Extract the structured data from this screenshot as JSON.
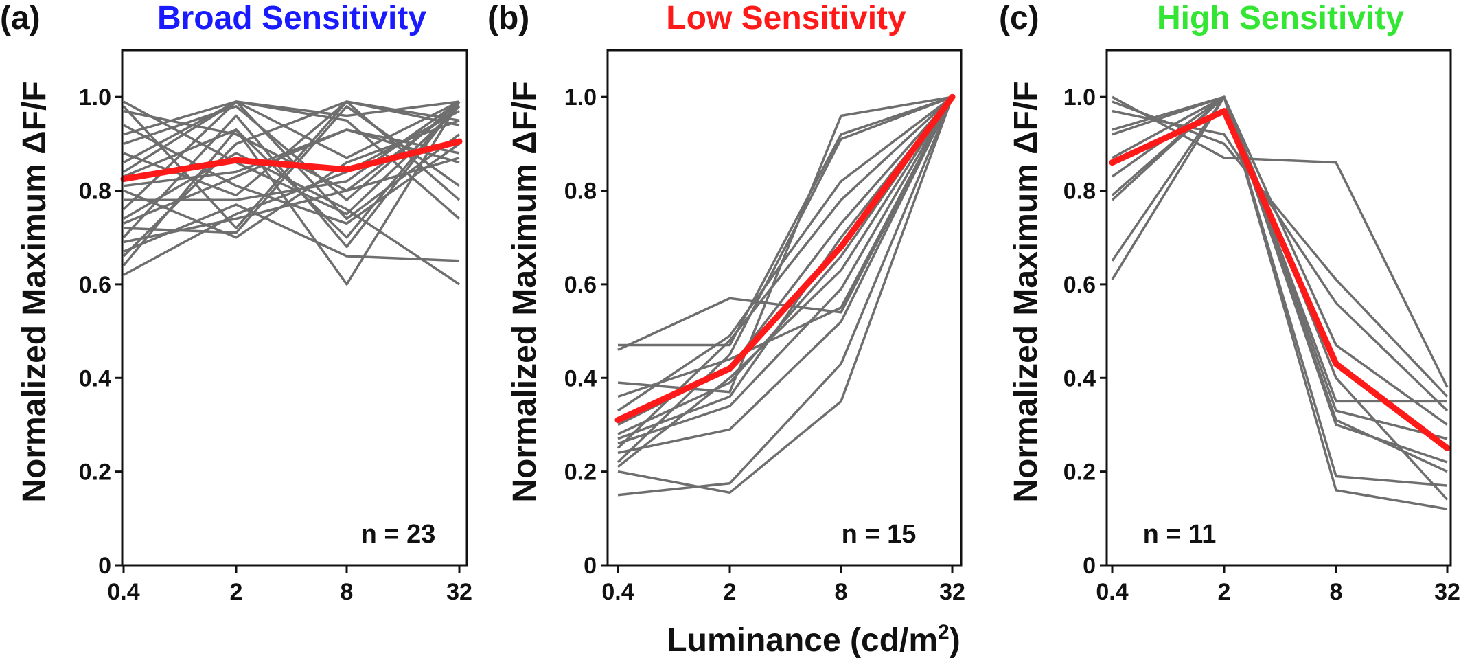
{
  "figure": {
    "xlabel_main": "Luminance (cd/m",
    "xlabel_sup": "2",
    "xlabel_close": ")"
  },
  "chart_data": [
    {
      "type": "line",
      "panel": "(a)",
      "title": "Broad Sensitivity",
      "title_color": "#1a1aff",
      "ylabel": "Normalized Maximum ΔF/F",
      "x": [
        0.4,
        2,
        8,
        32
      ],
      "x_tick_labels": [
        "0.4",
        "2",
        "8",
        "32"
      ],
      "y_ticks": [
        0,
        0.2,
        0.4,
        0.6,
        0.8,
        1.0
      ],
      "y_tick_labels": [
        "0",
        "0.2",
        "0.4",
        "0.6",
        "0.8",
        "1.0"
      ],
      "ylim": [
        0,
        1.1
      ],
      "xscale": "log",
      "annotation": "n = 23",
      "individual_color": "#6e6e6e",
      "mean_color": "#ff1a1a",
      "mean": [
        0.825,
        0.865,
        0.845,
        0.905
      ],
      "individual": [
        [
          0.99,
          0.86,
          0.75,
          0.98
        ],
        [
          0.98,
          0.72,
          0.99,
          0.95
        ],
        [
          0.92,
          0.99,
          0.96,
          0.99
        ],
        [
          0.9,
          0.98,
          0.78,
          0.99
        ],
        [
          0.88,
          0.79,
          0.99,
          0.94
        ],
        [
          0.86,
          0.99,
          0.87,
          0.99
        ],
        [
          0.83,
          0.93,
          0.7,
          0.99
        ],
        [
          0.81,
          0.84,
          0.93,
          0.86
        ],
        [
          0.78,
          0.78,
          0.82,
          0.99
        ],
        [
          0.76,
          0.99,
          0.74,
          0.92
        ],
        [
          0.74,
          0.88,
          0.76,
          0.6
        ],
        [
          0.72,
          0.71,
          0.98,
          0.81
        ],
        [
          0.7,
          0.96,
          0.68,
          0.99
        ],
        [
          0.69,
          0.74,
          0.8,
          0.87
        ],
        [
          0.67,
          0.77,
          0.66,
          0.65
        ],
        [
          0.66,
          0.9,
          0.99,
          0.78
        ],
        [
          0.64,
          0.93,
          0.6,
          0.99
        ],
        [
          0.62,
          0.75,
          0.84,
          0.97
        ],
        [
          0.94,
          0.81,
          0.73,
          0.9
        ],
        [
          0.84,
          0.99,
          0.95,
          0.74
        ],
        [
          0.8,
          0.7,
          0.86,
          0.95
        ],
        [
          0.97,
          0.92,
          0.8,
          0.98
        ],
        [
          0.73,
          0.83,
          0.93,
          0.88
        ]
      ]
    },
    {
      "type": "line",
      "panel": "(b)",
      "title": "Low Sensitivity",
      "title_color": "#ff1a1a",
      "ylabel": "Normalized Maximum ΔF/F",
      "x": [
        0.4,
        2,
        8,
        32
      ],
      "x_tick_labels": [
        "0.4",
        "2",
        "8",
        "32"
      ],
      "y_ticks": [
        0,
        0.2,
        0.4,
        0.6,
        0.8,
        1.0
      ],
      "y_tick_labels": [
        "0",
        "0.2",
        "0.4",
        "0.6",
        "0.8",
        "1.0"
      ],
      "ylim": [
        0,
        1.1
      ],
      "xscale": "log",
      "annotation": "n = 15",
      "individual_color": "#6e6e6e",
      "mean_color": "#ff1a1a",
      "mean": [
        0.31,
        0.42,
        0.68,
        1.0
      ],
      "individual": [
        [
          0.47,
          0.47,
          0.92,
          1.0
        ],
        [
          0.46,
          0.57,
          0.54,
          1.0
        ],
        [
          0.39,
          0.37,
          0.96,
          1.0
        ],
        [
          0.33,
          0.49,
          0.82,
          1.0
        ],
        [
          0.3,
          0.42,
          0.73,
          1.0
        ],
        [
          0.28,
          0.39,
          0.66,
          1.0
        ],
        [
          0.26,
          0.34,
          0.59,
          1.0
        ],
        [
          0.24,
          0.29,
          0.52,
          1.0
        ],
        [
          0.22,
          0.45,
          0.91,
          1.0
        ],
        [
          0.2,
          0.155,
          0.35,
          1.0
        ],
        [
          0.15,
          0.175,
          0.43,
          1.0
        ],
        [
          0.25,
          0.48,
          0.78,
          1.0
        ],
        [
          0.21,
          0.4,
          0.63,
          1.0
        ],
        [
          0.36,
          0.44,
          0.55,
          1.0
        ],
        [
          0.27,
          0.36,
          0.7,
          1.0
        ]
      ]
    },
    {
      "type": "line",
      "panel": "(c)",
      "title": "High Sensitivity",
      "title_color": "#33e633",
      "ylabel": "Normalized Maximum ΔF/F",
      "x": [
        0.4,
        2,
        8,
        32
      ],
      "x_tick_labels": [
        "0.4",
        "2",
        "8",
        "32"
      ],
      "y_ticks": [
        0,
        0.2,
        0.4,
        0.6,
        0.8,
        1.0
      ],
      "y_tick_labels": [
        "0",
        "0.2",
        "0.4",
        "0.6",
        "0.8",
        "1.0"
      ],
      "ylim": [
        0,
        1.1
      ],
      "xscale": "log",
      "annotation": "n = 11",
      "individual_color": "#6e6e6e",
      "mean_color": "#ff1a1a",
      "mean": [
        0.86,
        0.97,
        0.43,
        0.25
      ],
      "individual": [
        [
          1.0,
          0.87,
          0.86,
          0.38
        ],
        [
          0.99,
          0.9,
          0.61,
          0.36
        ],
        [
          0.97,
          0.92,
          0.56,
          0.33
        ],
        [
          0.93,
          1.0,
          0.47,
          0.3
        ],
        [
          0.92,
          1.0,
          0.35,
          0.35
        ],
        [
          0.87,
          1.0,
          0.33,
          0.27
        ],
        [
          0.83,
          1.0,
          0.31,
          0.2
        ],
        [
          0.79,
          1.0,
          0.19,
          0.17
        ],
        [
          0.78,
          1.0,
          0.16,
          0.12
        ],
        [
          0.65,
          1.0,
          0.4,
          0.14
        ],
        [
          0.61,
          1.0,
          0.3,
          0.22
        ]
      ]
    }
  ]
}
